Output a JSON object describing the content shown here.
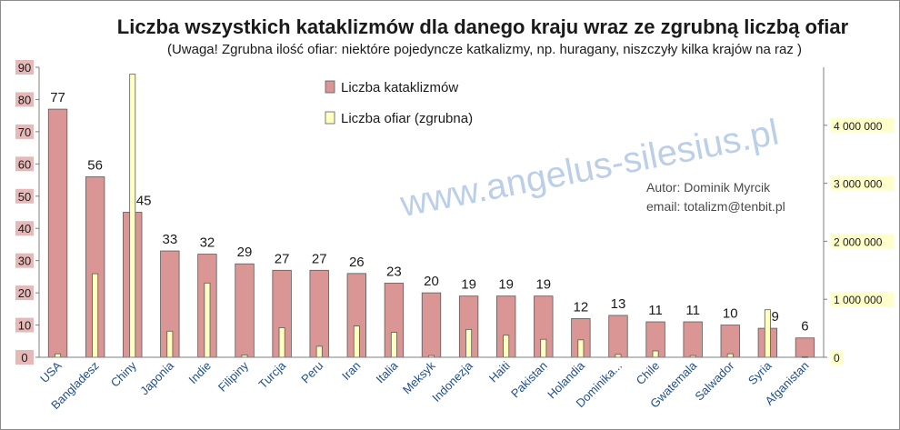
{
  "chart_data": {
    "type": "bar",
    "title": "Liczba wszystkich kataklizmów dla danego kraju wraz ze zgrubną liczbą ofiar",
    "subtitle": "(Uwaga! Zgrubna ilość ofiar: niektóre pojedyncze katkalizmy, np. huragany, niszczyły kilka krajów na raz )",
    "categories": [
      "USA",
      "Bangladesz",
      "Chiny",
      "Japonia",
      "Indie",
      "Filipiny",
      "Turcja",
      "Peru",
      "Iran",
      "Italia",
      "Meksyk",
      "Indonezja",
      "Haiti",
      "Pakistan",
      "Holandia",
      "Dominika...",
      "Chile",
      "Gwatemala",
      "Salwador",
      "Syria",
      "Afganistan"
    ],
    "series": [
      {
        "name": "Liczba kataklizmów",
        "axis": "left",
        "color": "#d99694",
        "values": [
          77,
          56,
          45,
          33,
          32,
          29,
          27,
          27,
          26,
          23,
          20,
          19,
          19,
          19,
          12,
          13,
          11,
          11,
          10,
          9,
          6
        ],
        "data_labels": [
          "77",
          "56",
          "45",
          "33",
          "32",
          "29",
          "27",
          "27",
          "26",
          "23",
          "20",
          "19",
          "19",
          "19",
          "12",
          "13",
          "11",
          "11",
          "10",
          "9",
          "6"
        ]
      },
      {
        "name": "Liczba ofiar (zgrubna)",
        "axis": "right",
        "color": "#ffffc0",
        "values": [
          60000,
          1440000,
          4880000,
          450000,
          1280000,
          40000,
          510000,
          190000,
          540000,
          430000,
          30000,
          480000,
          380000,
          310000,
          300000,
          50000,
          110000,
          30000,
          60000,
          820000,
          10000
        ]
      }
    ],
    "yleft": {
      "ylim": [
        0,
        90
      ],
      "ticks": [
        "0",
        "10",
        "20",
        "30",
        "40",
        "50",
        "60",
        "70",
        "80",
        "90"
      ]
    },
    "yright": {
      "ylim": [
        0,
        5000000
      ],
      "ticks": [
        "0",
        "1 000 000",
        "2 000 000",
        "3 000 000",
        "4 000 000"
      ],
      "tick_values": [
        0,
        1000000,
        2000000,
        3000000,
        4000000
      ]
    },
    "xlabel": "",
    "ylabel": "",
    "legend_position": "top-center",
    "grid": false,
    "annotations": {
      "author": "Autor:  Dominik Myrcik",
      "email": "email:  totalizm@tenbit.pl",
      "watermark": "www.angelus-silesius.pl"
    },
    "colors": {
      "left_tick_bg": "#e6b9b8",
      "right_tick_bg": "#ffffcc",
      "watermark": "#a6bfe0"
    }
  }
}
